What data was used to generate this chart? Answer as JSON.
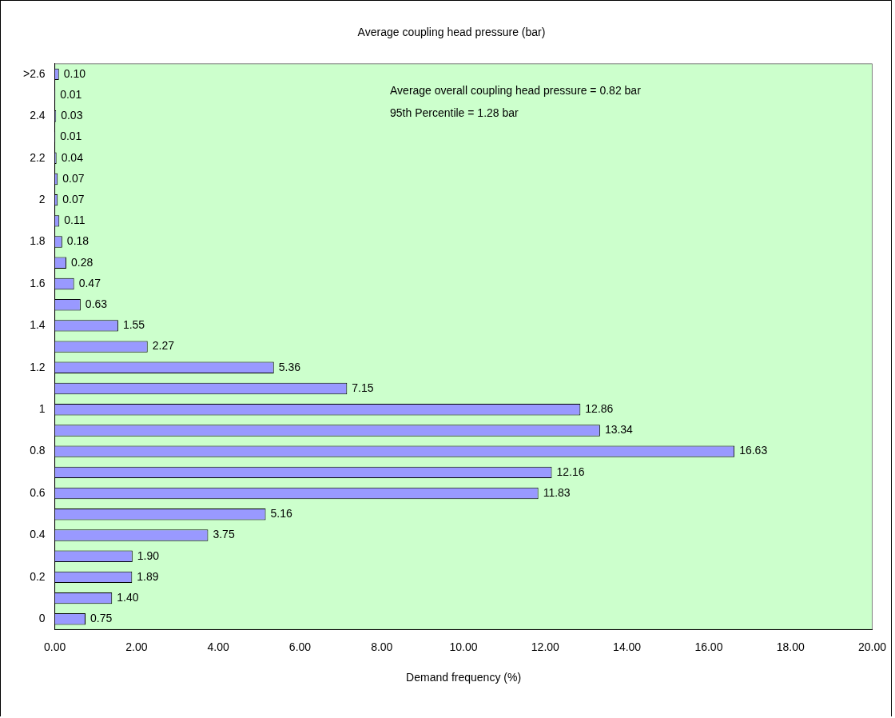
{
  "chart_data": {
    "type": "bar",
    "orientation": "horizontal",
    "title": "Average coupling head pressure (bar)",
    "xlabel": "Demand frequency (%)",
    "categories": [
      ">2.6",
      null,
      "2.4",
      null,
      "2.2",
      null,
      "2",
      null,
      "1.8",
      null,
      "1.6",
      null,
      "1.4",
      null,
      "1.2",
      null,
      "1",
      null,
      "0.8",
      null,
      "0.6",
      null,
      "0.4",
      null,
      "0.2",
      null,
      "0"
    ],
    "values": [
      0.1,
      0.01,
      0.03,
      0.01,
      0.04,
      0.07,
      0.07,
      0.11,
      0.18,
      0.28,
      0.47,
      0.63,
      1.55,
      2.27,
      5.36,
      7.15,
      12.86,
      13.34,
      16.63,
      12.16,
      11.83,
      5.16,
      3.75,
      1.9,
      1.89,
      1.4,
      0.75
    ],
    "value_labels": [
      "0.10",
      "0.01",
      "0.03",
      "0.01",
      "0.04",
      "0.07",
      "0.07",
      "0.11",
      "0.18",
      "0.28",
      "0.47",
      "0.63",
      "1.55",
      "2.27",
      "5.36",
      "7.15",
      "12.86",
      "13.34",
      "16.63",
      "12.16",
      "11.83",
      "5.16",
      "3.75",
      "1.90",
      "1.89",
      "1.40",
      "0.75"
    ],
    "color": "#9999ff",
    "xlim": [
      0,
      20
    ],
    "xticks": [
      {
        "value": 0,
        "label": "0.00"
      },
      {
        "value": 2,
        "label": "2.00"
      },
      {
        "value": 4,
        "label": "4.00"
      },
      {
        "value": 6,
        "label": "6.00"
      },
      {
        "value": 8,
        "label": "8.00"
      },
      {
        "value": 10,
        "label": "10.00"
      },
      {
        "value": 12,
        "label": "12.00"
      },
      {
        "value": 14,
        "label": "14.00"
      },
      {
        "value": 16,
        "label": "16.00"
      },
      {
        "value": 18,
        "label": "18.00"
      },
      {
        "value": 20,
        "label": "20.00"
      }
    ],
    "annotations": [
      "Average overall coupling head pressure = 0.82 bar",
      "95th Percentile = 1.28 bar"
    ],
    "grid": false,
    "legend": false
  }
}
